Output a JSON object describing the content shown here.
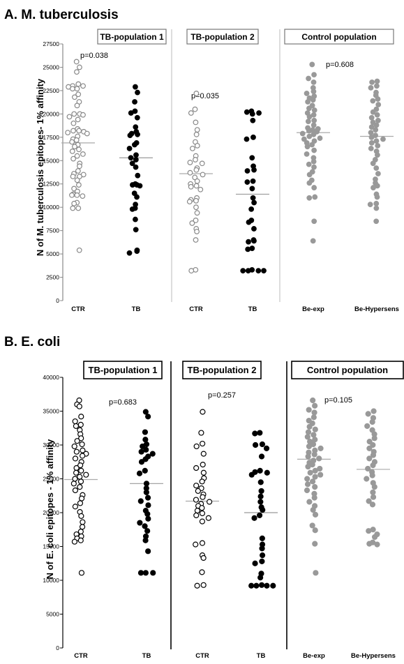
{
  "chart_data": [
    {
      "type": "scatter",
      "title": "A. M. tuberculosis",
      "ylabel": "N of M. tuberculosis epitopes- 1% affinity",
      "ylim": [
        0,
        27500
      ],
      "yticks": [
        0,
        2500,
        5000,
        7500,
        10000,
        12500,
        15000,
        17500,
        20000,
        22500,
        25000,
        27500
      ],
      "groups": [
        {
          "name": "TB-population 1",
          "pvalue": "p=0.038",
          "boxed": "light"
        },
        {
          "name": "TB-population 2",
          "pvalue": "p=0.035",
          "boxed": "light"
        },
        {
          "name": "Control population",
          "pvalue": "p=0.608",
          "boxed": "light"
        }
      ],
      "categories": [
        "CTR",
        "TB",
        "CTR",
        "TB",
        "Be-exp",
        "Be-Hypersens"
      ],
      "colors": {
        "open": "#888888",
        "filled": "#000000",
        "grey": "#999999"
      },
      "series": [
        {
          "category": "CTR",
          "group": 0,
          "marker": "open",
          "median": 16900,
          "values": [
            25600,
            25000,
            24500,
            23200,
            23000,
            23000,
            22900,
            22700,
            22700,
            22100,
            21800,
            21300,
            20900,
            20000,
            20000,
            19900,
            19700,
            19400,
            19000,
            18400,
            18200,
            18200,
            18100,
            18000,
            17900,
            17600,
            17300,
            17200,
            17000,
            16700,
            16500,
            16200,
            16000,
            15700,
            15500,
            15200,
            14700,
            14400,
            13900,
            13600,
            13500,
            13300,
            13300,
            12900,
            12400,
            12000,
            11700,
            11400,
            11300,
            11300,
            11200,
            10500,
            10400,
            9900,
            9900,
            5400
          ]
        },
        {
          "category": "TB",
          "group": 0,
          "marker": "filled",
          "median": 15300,
          "values": [
            22900,
            22300,
            21300,
            20300,
            20100,
            19600,
            18600,
            18100,
            17900,
            17800,
            17700,
            16900,
            16700,
            16300,
            15600,
            15300,
            15100,
            14700,
            14300,
            13400,
            12500,
            12400,
            12400,
            12300,
            11500,
            11100,
            10300,
            9900,
            9800,
            8700,
            7600,
            5400,
            5300,
            5100
          ]
        },
        {
          "category": "CTR",
          "group": 1,
          "marker": "open",
          "median": 13600,
          "values": [
            22200,
            20500,
            20100,
            19100,
            18300,
            17800,
            17000,
            16600,
            16300,
            15500,
            15100,
            14800,
            14700,
            14200,
            14000,
            13700,
            13500,
            13200,
            12800,
            12500,
            12300,
            12200,
            11900,
            11000,
            10800,
            10700,
            10600,
            10000,
            9400,
            8600,
            8300,
            7700,
            7400,
            6500,
            3300,
            3200
          ]
        },
        {
          "category": "TB",
          "group": 1,
          "marker": "filled",
          "median": 11400,
          "values": [
            20300,
            20200,
            20100,
            20000,
            19300,
            17500,
            17300,
            15300,
            14400,
            14000,
            13900,
            12800,
            12700,
            12000,
            11000,
            10500,
            9800,
            8600,
            8400,
            7700,
            6500,
            6400,
            6300,
            5600,
            5500,
            3300,
            3200,
            3200,
            3200,
            3200
          ]
        },
        {
          "category": "Be-exp",
          "group": 2,
          "marker": "grey",
          "median": 18000,
          "values": [
            25300,
            24200,
            23800,
            23400,
            22800,
            22400,
            22200,
            21900,
            21700,
            21500,
            21300,
            20900,
            20600,
            20400,
            20100,
            19900,
            19700,
            19300,
            19200,
            18800,
            18500,
            18400,
            18300,
            18200,
            18100,
            17900,
            17800,
            17600,
            17400,
            17300,
            17100,
            16900,
            16700,
            16500,
            16100,
            15700,
            15300,
            14900,
            14600,
            14300,
            13800,
            13500,
            12900,
            12600,
            12100,
            11100,
            11000,
            8500,
            6400
          ]
        },
        {
          "category": "Be-Hypersens",
          "group": 2,
          "marker": "grey",
          "median": 17600,
          "values": [
            23500,
            23400,
            23000,
            22800,
            22300,
            22000,
            21600,
            21400,
            21000,
            20500,
            20200,
            19900,
            19600,
            19300,
            19100,
            18800,
            18600,
            18300,
            18000,
            17700,
            17500,
            17300,
            17100,
            16900,
            16600,
            16300,
            16000,
            15600,
            15100,
            14700,
            14200,
            13600,
            13000,
            12600,
            12300,
            12100,
            11400,
            11100,
            10400,
            10300,
            9900,
            8500
          ]
        }
      ]
    },
    {
      "type": "scatter",
      "title": "B. E. coli",
      "ylabel": "N of E. coli epitopes - 1% affinity",
      "ylim": [
        0,
        40000
      ],
      "yticks": [
        0,
        5000,
        10000,
        15000,
        20000,
        25000,
        30000,
        35000,
        40000
      ],
      "groups": [
        {
          "name": "TB-population 1",
          "pvalue": "p=0.683",
          "boxed": "dark"
        },
        {
          "name": "TB-population 2",
          "pvalue": "p=0.257",
          "boxed": "dark"
        },
        {
          "name": "Control population",
          "pvalue": "p=0.105",
          "boxed": "dark"
        }
      ],
      "categories": [
        "CTR",
        "TB",
        "CTR",
        "TB",
        "Be-exp",
        "Be-Hypersens"
      ],
      "colors": {
        "open": "#000000",
        "filled": "#000000",
        "grey": "#999999"
      },
      "series": [
        {
          "category": "CTR",
          "group": 0,
          "marker": "open",
          "median": 24900,
          "values": [
            36600,
            36000,
            35700,
            34200,
            33500,
            33000,
            32800,
            32200,
            31600,
            31000,
            30600,
            30100,
            29800,
            29200,
            29000,
            28700,
            28400,
            28000,
            27500,
            27000,
            26600,
            26200,
            25900,
            25600,
            25300,
            25000,
            24600,
            24300,
            23800,
            23300,
            22600,
            22100,
            21400,
            20900,
            20100,
            19500,
            18600,
            17900,
            17200,
            16800,
            16500,
            16200,
            15900,
            15700,
            11100
          ]
        },
        {
          "category": "TB",
          "group": 0,
          "marker": "filled",
          "median": 24300,
          "values": [
            34900,
            34200,
            31900,
            30800,
            30100,
            29800,
            29300,
            29000,
            28700,
            28300,
            27900,
            27500,
            26200,
            25800,
            24300,
            23600,
            23000,
            22200,
            21700,
            21100,
            20300,
            19800,
            19100,
            18500,
            18000,
            17300,
            16500,
            15900,
            14300,
            11100,
            11100,
            11100
          ]
        },
        {
          "category": "CTR",
          "group": 1,
          "marker": "open",
          "median": 21700,
          "values": [
            34900,
            31800,
            30200,
            29800,
            28700,
            27100,
            26600,
            25900,
            25100,
            24600,
            24000,
            23600,
            23200,
            22700,
            22300,
            21900,
            21600,
            21300,
            21000,
            20700,
            20300,
            19900,
            19600,
            19200,
            18700,
            15500,
            15300,
            13700,
            13300,
            11200,
            9300,
            9200
          ]
        },
        {
          "category": "TB",
          "group": 1,
          "marker": "filled",
          "median": 20000,
          "values": [
            31800,
            31700,
            30100,
            30000,
            29500,
            28300,
            26200,
            26000,
            25900,
            25600,
            24500,
            23200,
            22400,
            21600,
            20800,
            20400,
            19600,
            19200,
            16200,
            15300,
            14700,
            13700,
            12800,
            12500,
            11000,
            10400,
            9300,
            9200,
            9200,
            9200,
            9200
          ]
        },
        {
          "category": "Be-exp",
          "group": 2,
          "marker": "grey",
          "median": 27900,
          "values": [
            36600,
            35800,
            35200,
            34800,
            34100,
            33600,
            33200,
            32700,
            32300,
            31900,
            31500,
            31200,
            30800,
            30500,
            30100,
            29800,
            29500,
            29200,
            28900,
            28600,
            28300,
            28000,
            27700,
            27400,
            27100,
            26800,
            26500,
            26200,
            25900,
            25600,
            25300,
            25000,
            24600,
            24200,
            23800,
            23300,
            22800,
            22200,
            21600,
            21000,
            20400,
            19700,
            18100,
            17400,
            15400,
            11100
          ]
        },
        {
          "category": "Be-Hypersens",
          "group": 2,
          "marker": "grey",
          "median": 26400,
          "values": [
            35000,
            34600,
            34000,
            33400,
            32800,
            32200,
            31600,
            31000,
            30500,
            30000,
            29500,
            29000,
            28500,
            28000,
            27500,
            27000,
            26500,
            26000,
            25500,
            25000,
            24400,
            23800,
            23000,
            22300,
            21700,
            21200,
            17500,
            17300,
            16800,
            16400,
            15600,
            15400,
            15300
          ]
        }
      ]
    }
  ]
}
